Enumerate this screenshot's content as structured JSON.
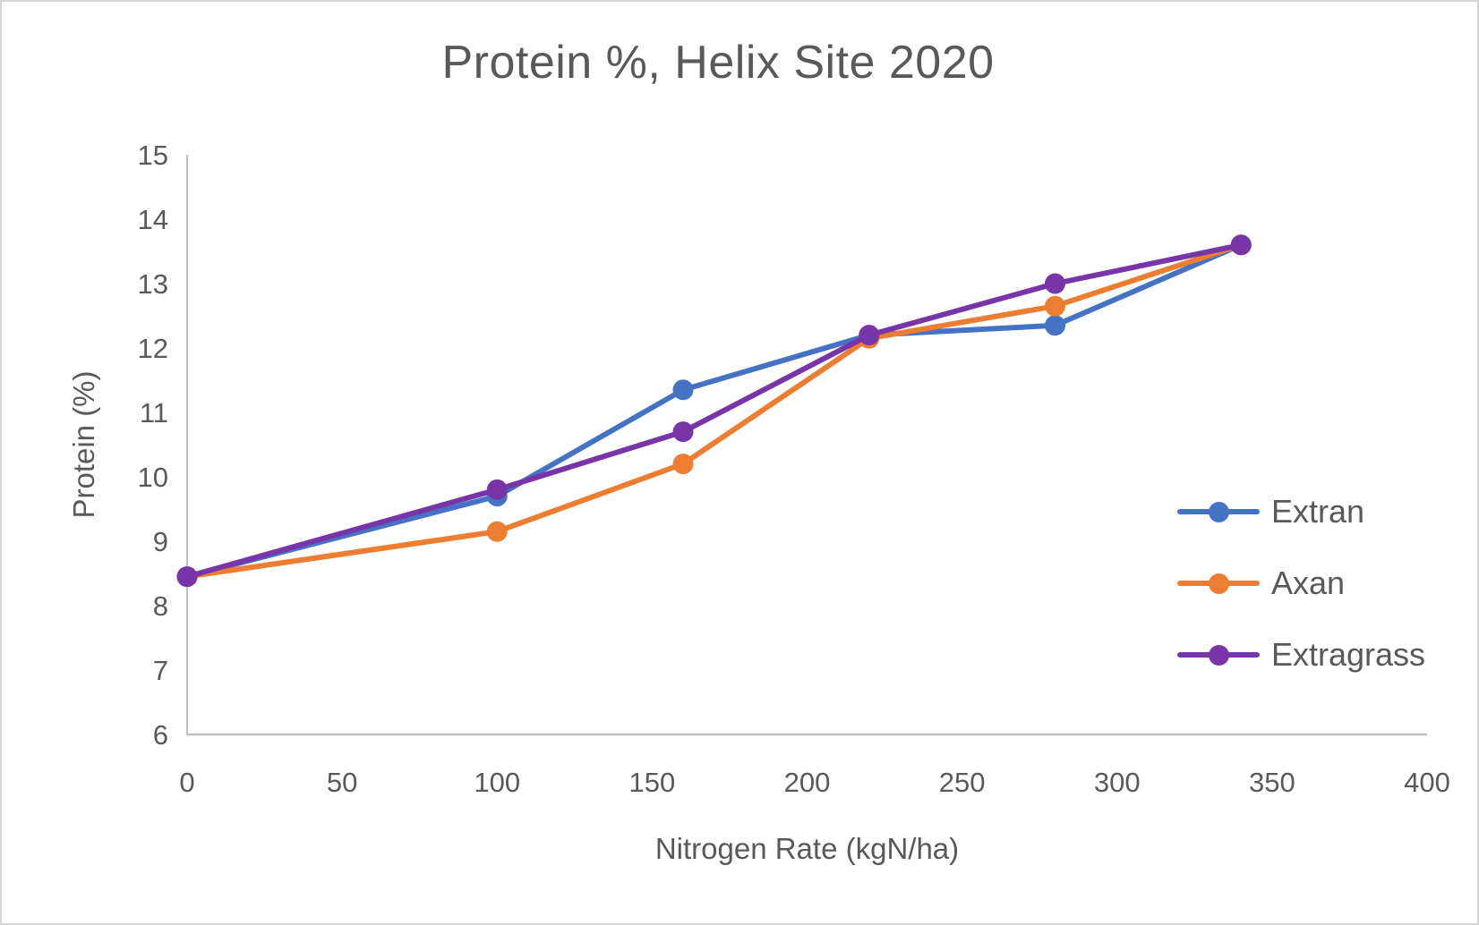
{
  "chart_data": {
    "type": "line",
    "title": "Protein %, Helix Site 2020",
    "xlabel": "Nitrogen Rate (kgN/ha)",
    "ylabel": "Protein (%)",
    "x": [
      0,
      100,
      160,
      220,
      280,
      340
    ],
    "series": [
      {
        "name": "Extran",
        "color": "#4472C4",
        "values": [
          8.45,
          9.7,
          11.35,
          12.2,
          12.35,
          13.6
        ]
      },
      {
        "name": "Axan",
        "color": "#ED7D31",
        "values": [
          8.45,
          9.15,
          10.2,
          12.15,
          12.65,
          13.6
        ]
      },
      {
        "name": "Extragrass",
        "color": "#7835A8",
        "values": [
          8.45,
          9.8,
          10.7,
          12.2,
          13.0,
          13.6
        ]
      }
    ],
    "xlim": [
      0,
      400
    ],
    "ylim": [
      6,
      15
    ],
    "xticks": [
      0,
      50,
      100,
      150,
      200,
      250,
      300,
      350,
      400
    ],
    "yticks": [
      6,
      7,
      8,
      9,
      10,
      11,
      12,
      13,
      14,
      15
    ],
    "grid": "off",
    "legend_position": "middle-right",
    "colors": {
      "axis_line": "#BFBFBF",
      "text": "#595959",
      "background": "#FFFFFF",
      "border": "#D5D5D5"
    }
  }
}
